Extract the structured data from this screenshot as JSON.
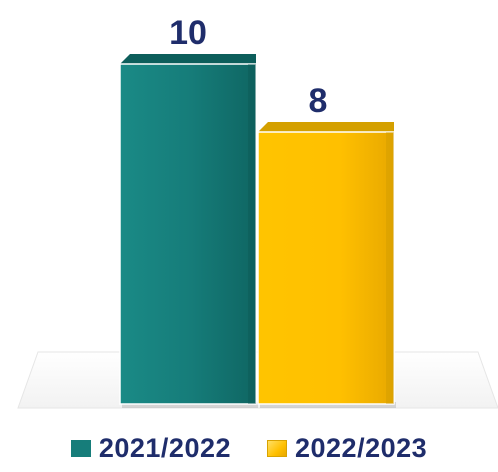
{
  "chart_data": {
    "type": "bar",
    "categories": [
      "2021/2022",
      "2022/2023"
    ],
    "series": [
      {
        "name": "2021/2022",
        "values": [
          10,
          null
        ]
      },
      {
        "name": "2022/2023",
        "values": [
          null,
          8
        ]
      }
    ],
    "values": [
      10,
      8
    ],
    "data_labels": [
      "10",
      "8"
    ],
    "colors": [
      "#167d7a",
      "#ffc000"
    ],
    "title": "",
    "xlabel": "",
    "ylabel": "",
    "ylim": [
      0,
      10
    ],
    "grid": false,
    "legend_position": "bottom",
    "legend": [
      "2021/2022",
      "2022/2023"
    ]
  }
}
